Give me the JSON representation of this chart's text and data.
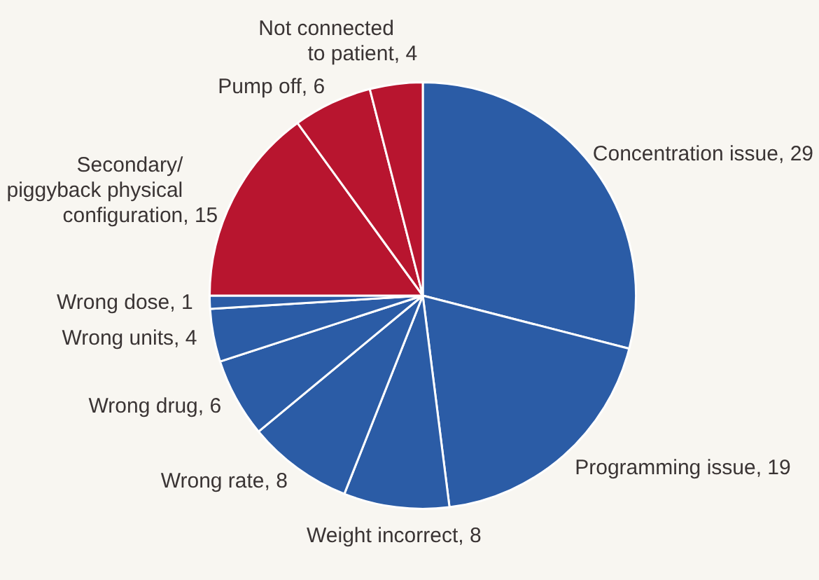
{
  "chart_data": {
    "type": "pie",
    "categories": [
      "Concentration issue",
      "Programming issue",
      "Weight incorrect",
      "Wrong rate",
      "Wrong drug",
      "Wrong units",
      "Wrong dose",
      "Secondary/piggyback physical configuration",
      "Pump off",
      "Not connected to patient"
    ],
    "values": [
      29,
      19,
      8,
      8,
      6,
      4,
      1,
      15,
      6,
      4
    ],
    "value_labels": [
      ", 29",
      ", 19",
      ", 8",
      ", 8",
      ", 6",
      ", 4",
      ", 1",
      ", 15",
      ", 6",
      ", 4"
    ],
    "colors": [
      "#2b5ca6",
      "#2b5ca6",
      "#2b5ca6",
      "#2b5ca6",
      "#2b5ca6",
      "#2b5ca6",
      "#2b5ca6",
      "#b8152f",
      "#b8152f",
      "#b8152f"
    ]
  }
}
